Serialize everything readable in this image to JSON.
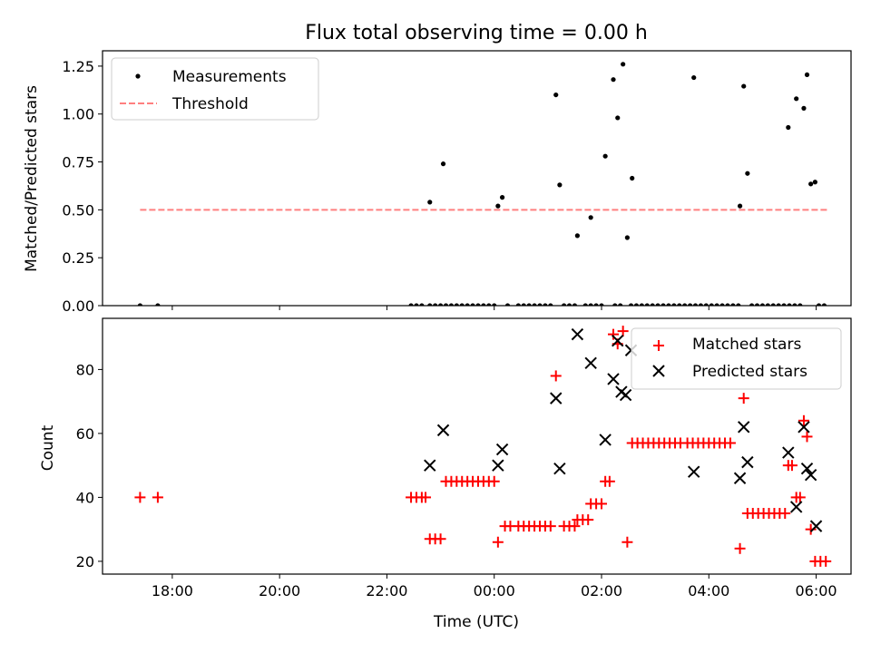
{
  "title": "Flux total observing time = 0.00 h",
  "chart_data": [
    {
      "type": "scatter",
      "panel": "top",
      "title": "Flux total observing time = 0.00 h",
      "xlabel": "",
      "ylabel": "Matched/Predicted stars",
      "x_unit": "hours since 17:00 UTC",
      "xlim": [
        -0.3,
        13.65
      ],
      "ylim": [
        0.0,
        1.33
      ],
      "yticks": [
        0.0,
        0.25,
        0.5,
        0.75,
        1.0,
        1.25
      ],
      "ytick_labels": [
        "0.00",
        "0.25",
        "0.50",
        "0.75",
        "1.00",
        "1.25"
      ],
      "xticks": [
        1,
        3,
        5,
        7,
        9,
        11,
        13
      ],
      "grid": false,
      "legend_position": "upper left",
      "series": [
        {
          "name": "Measurements",
          "color": "#000000",
          "marker": "dot",
          "points": [
            [
              0.4,
              0.0
            ],
            [
              0.73,
              0.0
            ],
            [
              5.45,
              0.0
            ],
            [
              5.55,
              0.0
            ],
            [
              5.65,
              0.0
            ],
            [
              5.8,
              0.0
            ],
            [
              5.9,
              0.0
            ],
            [
              6.0,
              0.0
            ],
            [
              6.1,
              0.0
            ],
            [
              6.2,
              0.0
            ],
            [
              6.3,
              0.0
            ],
            [
              6.4,
              0.0
            ],
            [
              6.5,
              0.0
            ],
            [
              6.6,
              0.0
            ],
            [
              6.7,
              0.0
            ],
            [
              6.8,
              0.0
            ],
            [
              6.9,
              0.0
            ],
            [
              7.0,
              0.0
            ],
            [
              7.25,
              0.0
            ],
            [
              7.45,
              0.0
            ],
            [
              7.55,
              0.0
            ],
            [
              7.65,
              0.0
            ],
            [
              7.75,
              0.0
            ],
            [
              7.85,
              0.0
            ],
            [
              7.95,
              0.0
            ],
            [
              8.05,
              0.0
            ],
            [
              8.3,
              0.0
            ],
            [
              8.4,
              0.0
            ],
            [
              8.5,
              0.0
            ],
            [
              8.7,
              0.0
            ],
            [
              8.8,
              0.0
            ],
            [
              8.9,
              0.0
            ],
            [
              9.0,
              0.0
            ],
            [
              9.25,
              0.0
            ],
            [
              9.35,
              0.0
            ],
            [
              9.55,
              0.0
            ],
            [
              9.65,
              0.0
            ],
            [
              9.75,
              0.0
            ],
            [
              9.85,
              0.0
            ],
            [
              9.95,
              0.0
            ],
            [
              10.05,
              0.0
            ],
            [
              10.15,
              0.0
            ],
            [
              10.25,
              0.0
            ],
            [
              10.35,
              0.0
            ],
            [
              10.45,
              0.0
            ],
            [
              10.55,
              0.0
            ],
            [
              10.65,
              0.0
            ],
            [
              10.75,
              0.0
            ],
            [
              10.85,
              0.0
            ],
            [
              10.95,
              0.0
            ],
            [
              11.05,
              0.0
            ],
            [
              11.15,
              0.0
            ],
            [
              11.25,
              0.0
            ],
            [
              11.35,
              0.0
            ],
            [
              11.45,
              0.0
            ],
            [
              11.55,
              0.0
            ],
            [
              11.8,
              0.0
            ],
            [
              11.9,
              0.0
            ],
            [
              12.0,
              0.0
            ],
            [
              12.1,
              0.0
            ],
            [
              12.2,
              0.0
            ],
            [
              12.3,
              0.0
            ],
            [
              12.4,
              0.0
            ],
            [
              12.5,
              0.0
            ],
            [
              12.6,
              0.0
            ],
            [
              12.7,
              0.0
            ],
            [
              13.05,
              0.0
            ],
            [
              13.15,
              0.0
            ],
            [
              5.8,
              0.54
            ],
            [
              6.05,
              0.74
            ],
            [
              7.07,
              0.52
            ],
            [
              7.15,
              0.565
            ],
            [
              8.15,
              1.1
            ],
            [
              8.22,
              0.63
            ],
            [
              8.55,
              0.365
            ],
            [
              8.8,
              0.46
            ],
            [
              9.07,
              0.78
            ],
            [
              9.22,
              1.18
            ],
            [
              9.3,
              0.98
            ],
            [
              9.4,
              1.26
            ],
            [
              9.48,
              0.355
            ],
            [
              9.57,
              0.665
            ],
            [
              10.72,
              1.19
            ],
            [
              11.58,
              0.52
            ],
            [
              11.65,
              1.145
            ],
            [
              11.72,
              0.69
            ],
            [
              12.48,
              0.93
            ],
            [
              12.63,
              1.08
            ],
            [
              12.77,
              1.03
            ],
            [
              12.83,
              1.205
            ],
            [
              12.9,
              0.635
            ],
            [
              12.98,
              0.645
            ]
          ]
        },
        {
          "name": "Threshold",
          "color": "#ff7f7f",
          "style": "dashed",
          "points": [
            [
              0.4,
              0.5
            ],
            [
              13.2,
              0.5
            ]
          ]
        }
      ]
    },
    {
      "type": "scatter",
      "panel": "bottom",
      "xlabel": "Time (UTC)",
      "ylabel": "Count",
      "x_unit": "hours since 17:00 UTC",
      "xlim": [
        -0.3,
        13.65
      ],
      "ylim": [
        16,
        96
      ],
      "yticks": [
        20,
        40,
        60,
        80
      ],
      "ytick_labels": [
        "20",
        "40",
        "60",
        "80"
      ],
      "xticks": [
        1,
        3,
        5,
        7,
        9,
        11,
        13
      ],
      "xtick_labels": [
        "18:00",
        "20:00",
        "22:00",
        "00:00",
        "02:00",
        "04:00",
        "06:00"
      ],
      "grid": false,
      "legend_position": "upper right",
      "series": [
        {
          "name": "Matched stars",
          "color": "#ff0000",
          "marker": "plus",
          "points": [
            [
              0.4,
              40
            ],
            [
              0.73,
              40
            ],
            [
              5.45,
              40
            ],
            [
              5.55,
              40
            ],
            [
              5.65,
              40
            ],
            [
              5.72,
              40
            ],
            [
              5.8,
              27
            ],
            [
              5.9,
              27
            ],
            [
              6.0,
              27
            ],
            [
              6.1,
              45
            ],
            [
              6.2,
              45
            ],
            [
              6.3,
              45
            ],
            [
              6.4,
              45
            ],
            [
              6.5,
              45
            ],
            [
              6.6,
              45
            ],
            [
              6.7,
              45
            ],
            [
              6.8,
              45
            ],
            [
              6.9,
              45
            ],
            [
              7.0,
              45
            ],
            [
              7.07,
              26
            ],
            [
              7.2,
              31
            ],
            [
              7.3,
              31
            ],
            [
              7.45,
              31
            ],
            [
              7.55,
              31
            ],
            [
              7.65,
              31
            ],
            [
              7.75,
              31
            ],
            [
              7.85,
              31
            ],
            [
              7.95,
              31
            ],
            [
              8.05,
              31
            ],
            [
              8.15,
              78
            ],
            [
              8.3,
              31
            ],
            [
              8.4,
              31
            ],
            [
              8.5,
              31
            ],
            [
              8.55,
              33
            ],
            [
              8.65,
              33
            ],
            [
              8.75,
              33
            ],
            [
              8.8,
              38
            ],
            [
              8.9,
              38
            ],
            [
              9.0,
              38
            ],
            [
              9.07,
              45
            ],
            [
              9.15,
              45
            ],
            [
              9.22,
              91
            ],
            [
              9.3,
              88
            ],
            [
              9.4,
              92
            ],
            [
              9.48,
              26
            ],
            [
              9.57,
              57
            ],
            [
              9.67,
              57
            ],
            [
              9.77,
              57
            ],
            [
              9.87,
              57
            ],
            [
              9.97,
              57
            ],
            [
              10.07,
              57
            ],
            [
              10.17,
              57
            ],
            [
              10.27,
              57
            ],
            [
              10.37,
              57
            ],
            [
              10.47,
              57
            ],
            [
              10.6,
              57
            ],
            [
              10.7,
              57
            ],
            [
              10.8,
              57
            ],
            [
              10.9,
              57
            ],
            [
              11.0,
              57
            ],
            [
              11.1,
              57
            ],
            [
              11.2,
              57
            ],
            [
              11.3,
              57
            ],
            [
              11.4,
              57
            ],
            [
              11.58,
              24
            ],
            [
              11.65,
              71
            ],
            [
              11.72,
              35
            ],
            [
              11.82,
              35
            ],
            [
              11.92,
              35
            ],
            [
              12.02,
              35
            ],
            [
              12.12,
              35
            ],
            [
              12.22,
              35
            ],
            [
              12.32,
              35
            ],
            [
              12.42,
              35
            ],
            [
              12.48,
              50
            ],
            [
              12.55,
              50
            ],
            [
              12.63,
              40
            ],
            [
              12.7,
              40
            ],
            [
              12.77,
              64
            ],
            [
              12.83,
              59
            ],
            [
              12.9,
              30
            ],
            [
              12.98,
              20
            ],
            [
              13.08,
              20
            ],
            [
              13.18,
              20
            ]
          ]
        },
        {
          "name": "Predicted stars",
          "color": "#000000",
          "marker": "x",
          "points": [
            [
              5.8,
              50
            ],
            [
              6.05,
              61
            ],
            [
              7.07,
              50
            ],
            [
              7.15,
              55
            ],
            [
              8.15,
              71
            ],
            [
              8.22,
              49
            ],
            [
              8.55,
              91
            ],
            [
              8.8,
              82
            ],
            [
              9.07,
              58
            ],
            [
              9.22,
              77
            ],
            [
              9.3,
              89
            ],
            [
              9.37,
              73
            ],
            [
              9.45,
              72
            ],
            [
              9.55,
              86
            ],
            [
              10.72,
              48
            ],
            [
              11.58,
              46
            ],
            [
              11.65,
              62
            ],
            [
              11.72,
              51
            ],
            [
              12.48,
              54
            ],
            [
              12.63,
              37
            ],
            [
              12.77,
              62
            ],
            [
              12.83,
              49
            ],
            [
              12.9,
              47
            ],
            [
              13.0,
              31
            ]
          ]
        }
      ]
    }
  ]
}
